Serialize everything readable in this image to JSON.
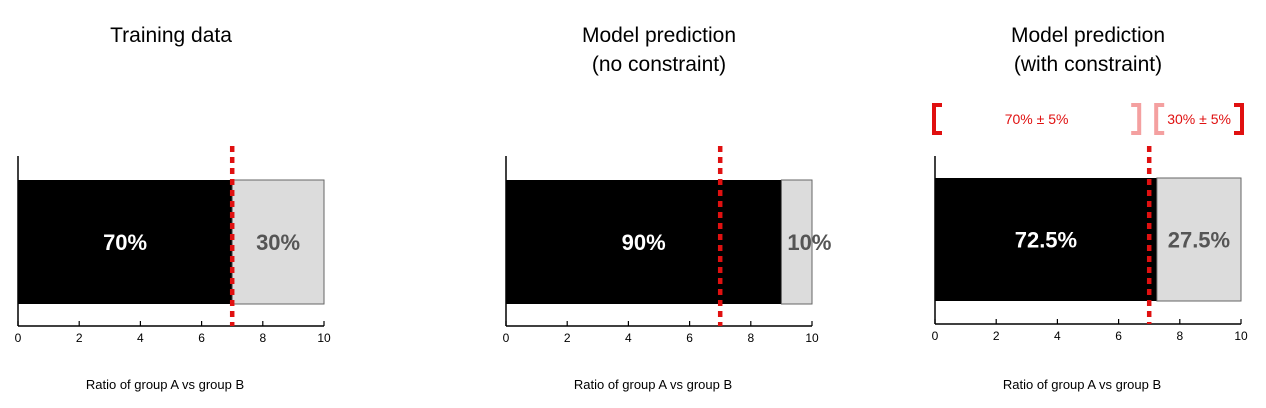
{
  "chart_data": [
    {
      "type": "bar",
      "orientation": "horizontal-stacked",
      "title_lines": [
        "Training data"
      ],
      "xlabel": "Ratio of group A vs group B",
      "xlim": [
        0,
        10
      ],
      "xticks": [
        "0",
        "2",
        "4",
        "6",
        "8",
        "10"
      ],
      "grid": false,
      "series": [
        {
          "value": 7,
          "label": "70%",
          "color": "#000000",
          "label_color": "#ffffff"
        },
        {
          "value": 3,
          "label": "30%",
          "color": "#dcdcdc",
          "label_color": "#555555"
        }
      ],
      "reference_line": {
        "x": 7,
        "style": "dotted",
        "color": "#e01010"
      }
    },
    {
      "type": "bar",
      "orientation": "horizontal-stacked",
      "title_lines": [
        "Model prediction",
        "(no constraint)"
      ],
      "xlabel": "Ratio of group A vs group B",
      "xlim": [
        0,
        10
      ],
      "xticks": [
        "0",
        "2",
        "4",
        "6",
        "8",
        "10"
      ],
      "grid": false,
      "series": [
        {
          "value": 9,
          "label": "90%",
          "color": "#000000",
          "label_color": "#ffffff"
        },
        {
          "value": 1,
          "label": "10%",
          "color": "#dcdcdc",
          "label_color": "#555555"
        }
      ],
      "reference_line": {
        "x": 7,
        "style": "dotted",
        "color": "#e01010"
      }
    },
    {
      "type": "bar",
      "orientation": "horizontal-stacked",
      "title_lines": [
        "Model prediction",
        "(with constraint)"
      ],
      "xlabel": "Ratio of group A vs group B",
      "xlim": [
        0,
        10
      ],
      "xticks": [
        "0",
        "2",
        "4",
        "6",
        "8",
        "10"
      ],
      "grid": false,
      "series": [
        {
          "value": 7.25,
          "label": "72.5%",
          "color": "#000000",
          "label_color": "#ffffff"
        },
        {
          "value": 2.75,
          "label": "27.5%",
          "color": "#dcdcdc",
          "label_color": "#555555"
        }
      ],
      "reference_line": {
        "x": 7,
        "style": "dotted",
        "color": "#e01010"
      },
      "ranges": [
        {
          "from": 0,
          "to": 7,
          "label": "70% ± 5%",
          "color": "#e01010",
          "end_color": "#f4a0a0"
        },
        {
          "from": 7,
          "to": 10,
          "label": "30% ± 5%",
          "color": "#e01010",
          "start_color": "#f4a0a0"
        }
      ]
    }
  ]
}
